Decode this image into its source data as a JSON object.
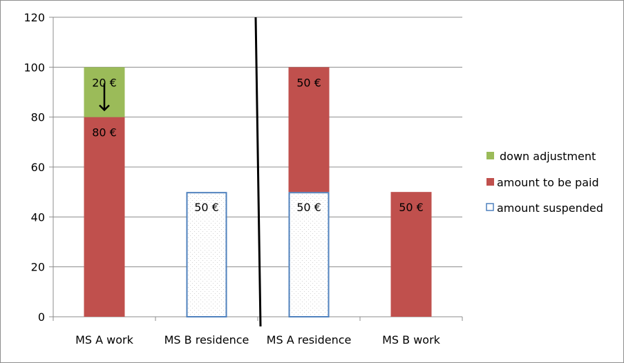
{
  "chart_data": {
    "type": "bar",
    "stacked": true,
    "categories": [
      "MS A work",
      "MS B residence",
      "MS A residence",
      "MS B work"
    ],
    "series": [
      {
        "name": "down adjustment",
        "color": "#9bbb59",
        "values": [
          20,
          0,
          0,
          0
        ],
        "labels": [
          "20 €",
          "",
          "",
          ""
        ]
      },
      {
        "name": "amount to be paid",
        "color": "#c0504d",
        "values": [
          80,
          0,
          50,
          50
        ],
        "labels": [
          "80 €",
          "",
          "50 €",
          "50 €"
        ]
      },
      {
        "name": "amount suspended",
        "color": "#4f81bd",
        "pattern": "dotted-outline",
        "values": [
          0,
          50,
          50,
          0
        ],
        "labels": [
          "",
          "50 €",
          "50 €",
          ""
        ]
      }
    ],
    "stack_order_bottom_to_top": [
      "amount suspended",
      "amount to be paid",
      "down adjustment"
    ],
    "yticks": [
      "0",
      "20",
      "40",
      "60",
      "80",
      "100",
      "120"
    ],
    "ylim": [
      0,
      120
    ],
    "grid": true,
    "legend_position": "right",
    "annotations": [
      "down arrow from 20 € to 80 € in MS A work",
      "black divider line between MS B residence and MS A residence"
    ],
    "title": "",
    "xlabel": "",
    "ylabel": ""
  }
}
